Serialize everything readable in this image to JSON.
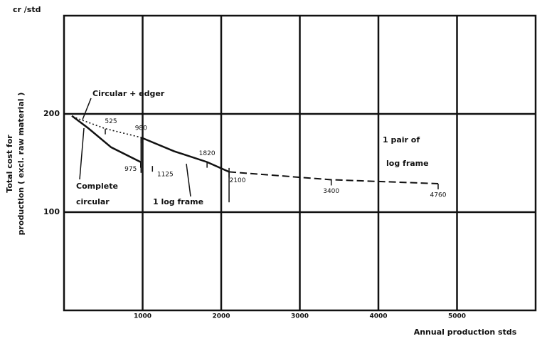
{
  "chart_data": {
    "type": "line",
    "unit_label": "cr /std",
    "y_label": [
      "Total cost for",
      "production ( excl. raw material )"
    ],
    "x_label": "Annual production   stds",
    "xlim": [
      0,
      6000
    ],
    "ylim": [
      0,
      300
    ],
    "xticks": [
      1000,
      2000,
      3000,
      4000,
      5000
    ],
    "yticks": [
      100,
      200
    ],
    "grid": true,
    "series": [
      {
        "name": "Circular + edger",
        "color": "#111111",
        "style": "dotted",
        "x": [
          150,
          525,
          980
        ],
        "values": [
          196,
          185,
          176
        ]
      },
      {
        "name": "Complete circular",
        "color": "#111111",
        "style": "solid",
        "x": [
          100,
          300,
          600,
          975
        ],
        "values": [
          198,
          186,
          166,
          151
        ]
      },
      {
        "name": "1 log frame",
        "color": "#111111",
        "style": "solid",
        "x": [
          980,
          1400,
          1820,
          2100
        ],
        "values": [
          176,
          162,
          151,
          141
        ]
      },
      {
        "name": "1 pair of log frame",
        "color": "#111111",
        "style": "dashed",
        "x": [
          2100,
          3400,
          4760
        ],
        "values": [
          141,
          133,
          129
        ]
      }
    ],
    "annotations": [
      {
        "text": "Circular + edger"
      },
      {
        "text": "Complete"
      },
      {
        "text": "circular"
      },
      {
        "text": "1 log frame"
      },
      {
        "text": "1 pair of"
      },
      {
        "text": "log frame"
      }
    ],
    "breakpoints": [
      {
        "value": 525,
        "cost": 185
      },
      {
        "value": 980,
        "cost": 176
      },
      {
        "value": 975,
        "cost": 151
      },
      {
        "value": 1125,
        "cost": 147
      },
      {
        "value": 1820,
        "cost": 151
      },
      {
        "value": 2100,
        "cost": 141
      },
      {
        "value": 3400,
        "cost": 133
      },
      {
        "value": 4760,
        "cost": 129
      }
    ]
  }
}
